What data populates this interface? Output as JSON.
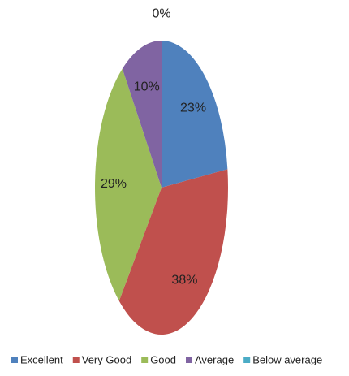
{
  "chart_data": {
    "type": "pie",
    "categories": [
      "Excellent",
      "Very Good",
      "Good",
      "Average",
      "Below average"
    ],
    "values": [
      23,
      38,
      29,
      10,
      0
    ],
    "value_labels": [
      "23%",
      "38%",
      "29%",
      "10%",
      "0%"
    ],
    "colors": [
      "#4f81bd",
      "#c0504d",
      "#9bbb59",
      "#8064a2",
      "#4bacc6"
    ],
    "legend": "bottom"
  }
}
